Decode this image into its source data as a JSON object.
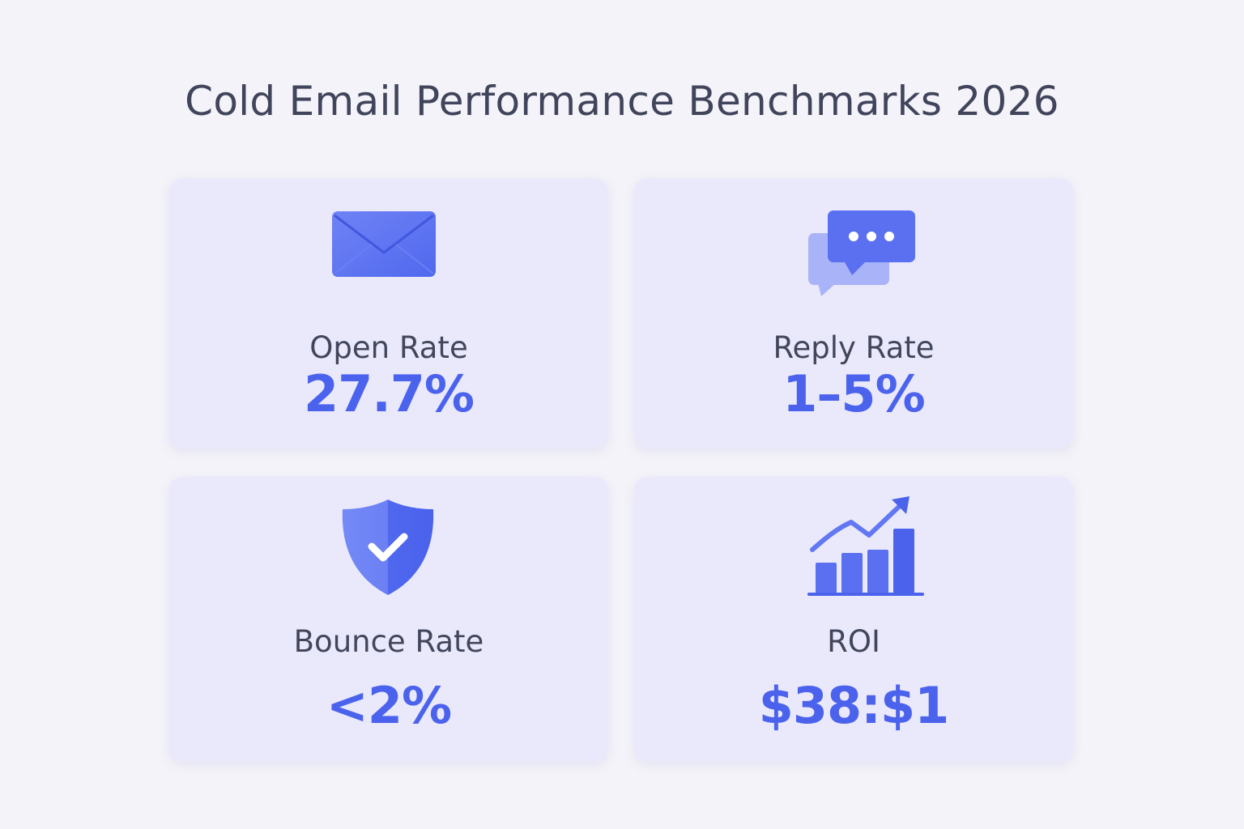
{
  "title": "Cold Email Performance Benchmarks 2026",
  "colors": {
    "accent": "#4b63ec",
    "text": "#42465c",
    "card": "#eae9fb",
    "background": "#f4f3f9"
  },
  "cards": [
    {
      "icon": "envelope-icon",
      "label": "Open Rate",
      "value": "27.7%"
    },
    {
      "icon": "chat-bubbles-icon",
      "label": "Reply Rate",
      "value": "1–5%"
    },
    {
      "icon": "shield-check-icon",
      "label": "Bounce Rate",
      "value": "<2%"
    },
    {
      "icon": "growth-chart-icon",
      "label": "ROI",
      "value": "$38:$1"
    }
  ]
}
